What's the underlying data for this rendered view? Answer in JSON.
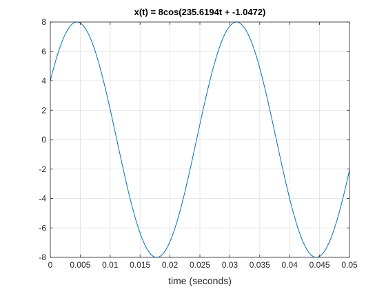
{
  "chart_data": {
    "type": "line",
    "title": "x(t) = 8cos(235.6194t + -1.0472)",
    "xlabel": "time (seconds)",
    "ylabel": "",
    "xlim": [
      0,
      0.05
    ],
    "ylim": [
      -8,
      8
    ],
    "xticks": [
      0,
      0.005,
      0.01,
      0.015,
      0.02,
      0.025,
      0.03,
      0.035,
      0.04,
      0.045,
      0.05
    ],
    "xtick_labels": [
      "0",
      "0.005",
      "0.01",
      "0.015",
      "0.02",
      "0.025",
      "0.03",
      "0.035",
      "0.04",
      "0.045",
      "0.05"
    ],
    "yticks": [
      -8,
      -6,
      -4,
      -2,
      0,
      2,
      4,
      6,
      8
    ],
    "ytick_labels": [
      "-8",
      "-6",
      "-4",
      "-2",
      "0",
      "2",
      "4",
      "6",
      "8"
    ],
    "grid": true,
    "series": [
      {
        "color": "#0072bd",
        "function": {
          "amplitude": 8,
          "omega": 235.6194,
          "phase": -1.0472
        },
        "samples": 400
      }
    ]
  }
}
